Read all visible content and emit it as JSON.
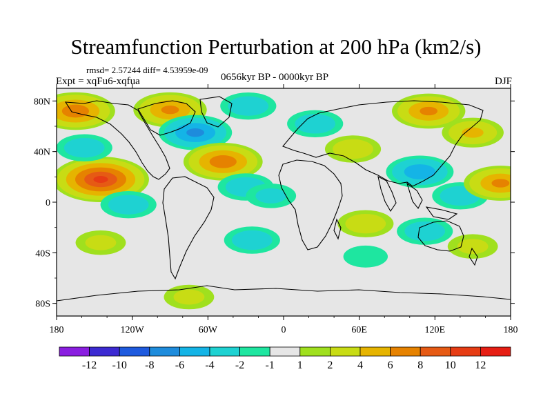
{
  "chart_data": {
    "type": "heatmap",
    "title": "Streamfunction Perturbation at 200 hPa (km2/s)",
    "stats": "rmsd= 2.57244  diff= 4.53959e-09",
    "experiment": "Expt = xqFu6-xqfua",
    "period": "0656kyr BP - 0000kyr BP",
    "season": "DJF",
    "xlim": [
      -180,
      180
    ],
    "ylim": [
      -90,
      90
    ],
    "x_ticks": [
      {
        "value": -180,
        "label": "180"
      },
      {
        "value": -120,
        "label": "120W"
      },
      {
        "value": -60,
        "label": "60W"
      },
      {
        "value": 0,
        "label": "0"
      },
      {
        "value": 60,
        "label": "60E"
      },
      {
        "value": 120,
        "label": "120E"
      },
      {
        "value": 180,
        "label": "180"
      }
    ],
    "y_ticks": [
      {
        "value": 80,
        "label": "80N"
      },
      {
        "value": 40,
        "label": "40N"
      },
      {
        "value": 0,
        "label": "0"
      },
      {
        "value": -40,
        "label": "40S"
      },
      {
        "value": -80,
        "label": "80S"
      }
    ],
    "colorbar": {
      "levels": [
        -12,
        -10,
        -8,
        -6,
        -4,
        -2,
        -1,
        1,
        2,
        4,
        6,
        8,
        10,
        12
      ],
      "labels": [
        "-12",
        "-10",
        "-8",
        "-6",
        "-4",
        "-2",
        "-1",
        "1",
        "2",
        "4",
        "6",
        "8",
        "10",
        "12"
      ],
      "colors": [
        "#8a1ee0",
        "#3c2ad2",
        "#1e5ade",
        "#1e8cdc",
        "#14b4e6",
        "#1ed2d2",
        "#1ee6a0",
        "#e6e6e6",
        "#a0e01e",
        "#c8dc14",
        "#e6b400",
        "#e68200",
        "#e65a14",
        "#e63c14",
        "#e61e14"
      ]
    },
    "anomaly_centers": [
      {
        "lon": -165,
        "lat": 72,
        "value": 7
      },
      {
        "lon": -90,
        "lat": 73,
        "value": 6
      },
      {
        "lon": -70,
        "lat": 55,
        "value": -6
      },
      {
        "lon": -28,
        "lat": 76,
        "value": -3
      },
      {
        "lon": -145,
        "lat": 18,
        "value": 10
      },
      {
        "lon": -158,
        "lat": 43,
        "value": -3
      },
      {
        "lon": -123,
        "lat": -2,
        "value": -3
      },
      {
        "lon": -48,
        "lat": 32,
        "value": 7
      },
      {
        "lon": -30,
        "lat": 12,
        "value": -3
      },
      {
        "lon": -10,
        "lat": 5,
        "value": -2
      },
      {
        "lon": 25,
        "lat": 62,
        "value": -3
      },
      {
        "lon": 115,
        "lat": 72,
        "value": 6
      },
      {
        "lon": 150,
        "lat": 55,
        "value": 4
      },
      {
        "lon": 55,
        "lat": 42,
        "value": 3
      },
      {
        "lon": 108,
        "lat": 24,
        "value": -5
      },
      {
        "lon": 140,
        "lat": 5,
        "value": -3
      },
      {
        "lon": 172,
        "lat": 15,
        "value": 6
      },
      {
        "lon": 65,
        "lat": -17,
        "value": 3
      },
      {
        "lon": 112,
        "lat": -23,
        "value": -3
      },
      {
        "lon": 150,
        "lat": -35,
        "value": 2
      },
      {
        "lon": -145,
        "lat": -32,
        "value": 2
      },
      {
        "lon": -25,
        "lat": -30,
        "value": -3
      },
      {
        "lon": 65,
        "lat": -43,
        "value": -1
      },
      {
        "lon": -75,
        "lat": -75,
        "value": 2
      }
    ]
  }
}
